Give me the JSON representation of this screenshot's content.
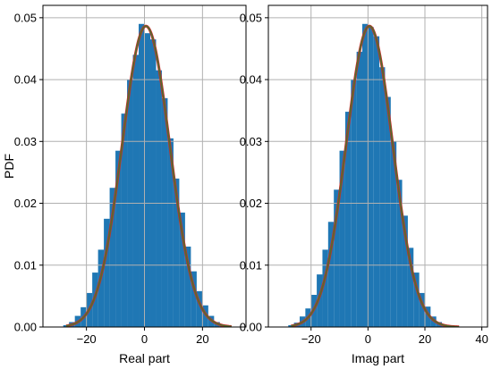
{
  "colors": {
    "bar": "#1f77b4",
    "pdf_curve": "#556b2f",
    "pdf_curve_edge": "#d62728",
    "grid": "#b0b0b0",
    "background": "#ffffff"
  },
  "chart_data": [
    {
      "type": "bar",
      "title": "",
      "xlabel": "Real part",
      "ylabel": "PDF",
      "xlim": [
        -35,
        35
      ],
      "ylim": [
        0,
        0.052
      ],
      "xticks": [
        -20,
        0,
        20
      ],
      "xtick_labels": [
        "−20",
        "0",
        "20"
      ],
      "yticks": [
        0,
        0.01,
        0.02,
        0.03,
        0.04,
        0.05
      ],
      "ytick_labels": [
        "0.00",
        "0.01",
        "0.02",
        "0.03",
        "0.04",
        "0.05"
      ],
      "grid": true,
      "bins": [
        {
          "x0": -28,
          "x1": -26,
          "value": 0.0003
        },
        {
          "x0": -26,
          "x1": -24,
          "value": 0.0008
        },
        {
          "x0": -24,
          "x1": -22,
          "value": 0.0018
        },
        {
          "x0": -22,
          "x1": -20,
          "value": 0.0032
        },
        {
          "x0": -20,
          "x1": -18,
          "value": 0.0055
        },
        {
          "x0": -18,
          "x1": -16,
          "value": 0.0088
        },
        {
          "x0": -16,
          "x1": -14,
          "value": 0.0125
        },
        {
          "x0": -14,
          "x1": -12,
          "value": 0.0175
        },
        {
          "x0": -12,
          "x1": -10,
          "value": 0.0225
        },
        {
          "x0": -10,
          "x1": -8,
          "value": 0.0285
        },
        {
          "x0": -8,
          "x1": -6,
          "value": 0.0345
        },
        {
          "x0": -6,
          "x1": -4,
          "value": 0.04
        },
        {
          "x0": -4,
          "x1": -2,
          "value": 0.044
        },
        {
          "x0": -2,
          "x1": 0,
          "value": 0.049
        },
        {
          "x0": 0,
          "x1": 2,
          "value": 0.0475
        },
        {
          "x0": 2,
          "x1": 4,
          "value": 0.0465
        },
        {
          "x0": 4,
          "x1": 6,
          "value": 0.0415
        },
        {
          "x0": 6,
          "x1": 8,
          "value": 0.037
        },
        {
          "x0": 8,
          "x1": 10,
          "value": 0.0305
        },
        {
          "x0": 10,
          "x1": 12,
          "value": 0.024
        },
        {
          "x0": 12,
          "x1": 14,
          "value": 0.0185
        },
        {
          "x0": 14,
          "x1": 16,
          "value": 0.013
        },
        {
          "x0": 16,
          "x1": 18,
          "value": 0.009
        },
        {
          "x0": 18,
          "x1": 20,
          "value": 0.0058
        },
        {
          "x0": 20,
          "x1": 22,
          "value": 0.0035
        },
        {
          "x0": 22,
          "x1": 24,
          "value": 0.0018
        },
        {
          "x0": 24,
          "x1": 26,
          "value": 0.0008
        },
        {
          "x0": 26,
          "x1": 28,
          "value": 0.0003
        }
      ],
      "curve": {
        "mean": 0.5,
        "std": 8.2,
        "x_range": [
          -27,
          30
        ]
      }
    },
    {
      "type": "bar",
      "title": "",
      "xlabel": "Imag part",
      "ylabel": "",
      "xlim": [
        -35,
        42
      ],
      "ylim": [
        0,
        0.052
      ],
      "xticks": [
        -20,
        0,
        20,
        40
      ],
      "xtick_labels": [
        "−20",
        "0",
        "20",
        "40"
      ],
      "yticks": [
        0,
        0.01,
        0.02,
        0.03,
        0.04,
        0.05
      ],
      "ytick_labels": [
        "0.00",
        "0.01",
        "0.02",
        "0.03",
        "0.04",
        "0.05"
      ],
      "grid": true,
      "bins": [
        {
          "x0": -28,
          "x1": -26,
          "value": 0.0003
        },
        {
          "x0": -26,
          "x1": -24,
          "value": 0.0007
        },
        {
          "x0": -24,
          "x1": -22,
          "value": 0.0017
        },
        {
          "x0": -22,
          "x1": -20,
          "value": 0.003
        },
        {
          "x0": -20,
          "x1": -18,
          "value": 0.0052
        },
        {
          "x0": -18,
          "x1": -16,
          "value": 0.0085
        },
        {
          "x0": -16,
          "x1": -14,
          "value": 0.0125
        },
        {
          "x0": -14,
          "x1": -12,
          "value": 0.017
        },
        {
          "x0": -12,
          "x1": -10,
          "value": 0.0222
        },
        {
          "x0": -10,
          "x1": -8,
          "value": 0.0285
        },
        {
          "x0": -8,
          "x1": -6,
          "value": 0.0348
        },
        {
          "x0": -6,
          "x1": -4,
          "value": 0.04
        },
        {
          "x0": -4,
          "x1": -2,
          "value": 0.0445
        },
        {
          "x0": -2,
          "x1": 0,
          "value": 0.049
        },
        {
          "x0": 0,
          "x1": 2,
          "value": 0.0485
        },
        {
          "x0": 2,
          "x1": 4,
          "value": 0.047
        },
        {
          "x0": 4,
          "x1": 6,
          "value": 0.042
        },
        {
          "x0": 6,
          "x1": 8,
          "value": 0.0372
        },
        {
          "x0": 8,
          "x1": 10,
          "value": 0.03
        },
        {
          "x0": 10,
          "x1": 12,
          "value": 0.0238
        },
        {
          "x0": 12,
          "x1": 14,
          "value": 0.018
        },
        {
          "x0": 14,
          "x1": 16,
          "value": 0.0128
        },
        {
          "x0": 16,
          "x1": 18,
          "value": 0.0088
        },
        {
          "x0": 18,
          "x1": 20,
          "value": 0.0055
        },
        {
          "x0": 20,
          "x1": 22,
          "value": 0.0033
        },
        {
          "x0": 22,
          "x1": 24,
          "value": 0.0017
        },
        {
          "x0": 24,
          "x1": 26,
          "value": 0.0008
        },
        {
          "x0": 26,
          "x1": 28,
          "value": 0.0003
        }
      ],
      "curve": {
        "mean": 0.5,
        "std": 8.2,
        "x_range": [
          -27,
          32
        ]
      }
    }
  ]
}
